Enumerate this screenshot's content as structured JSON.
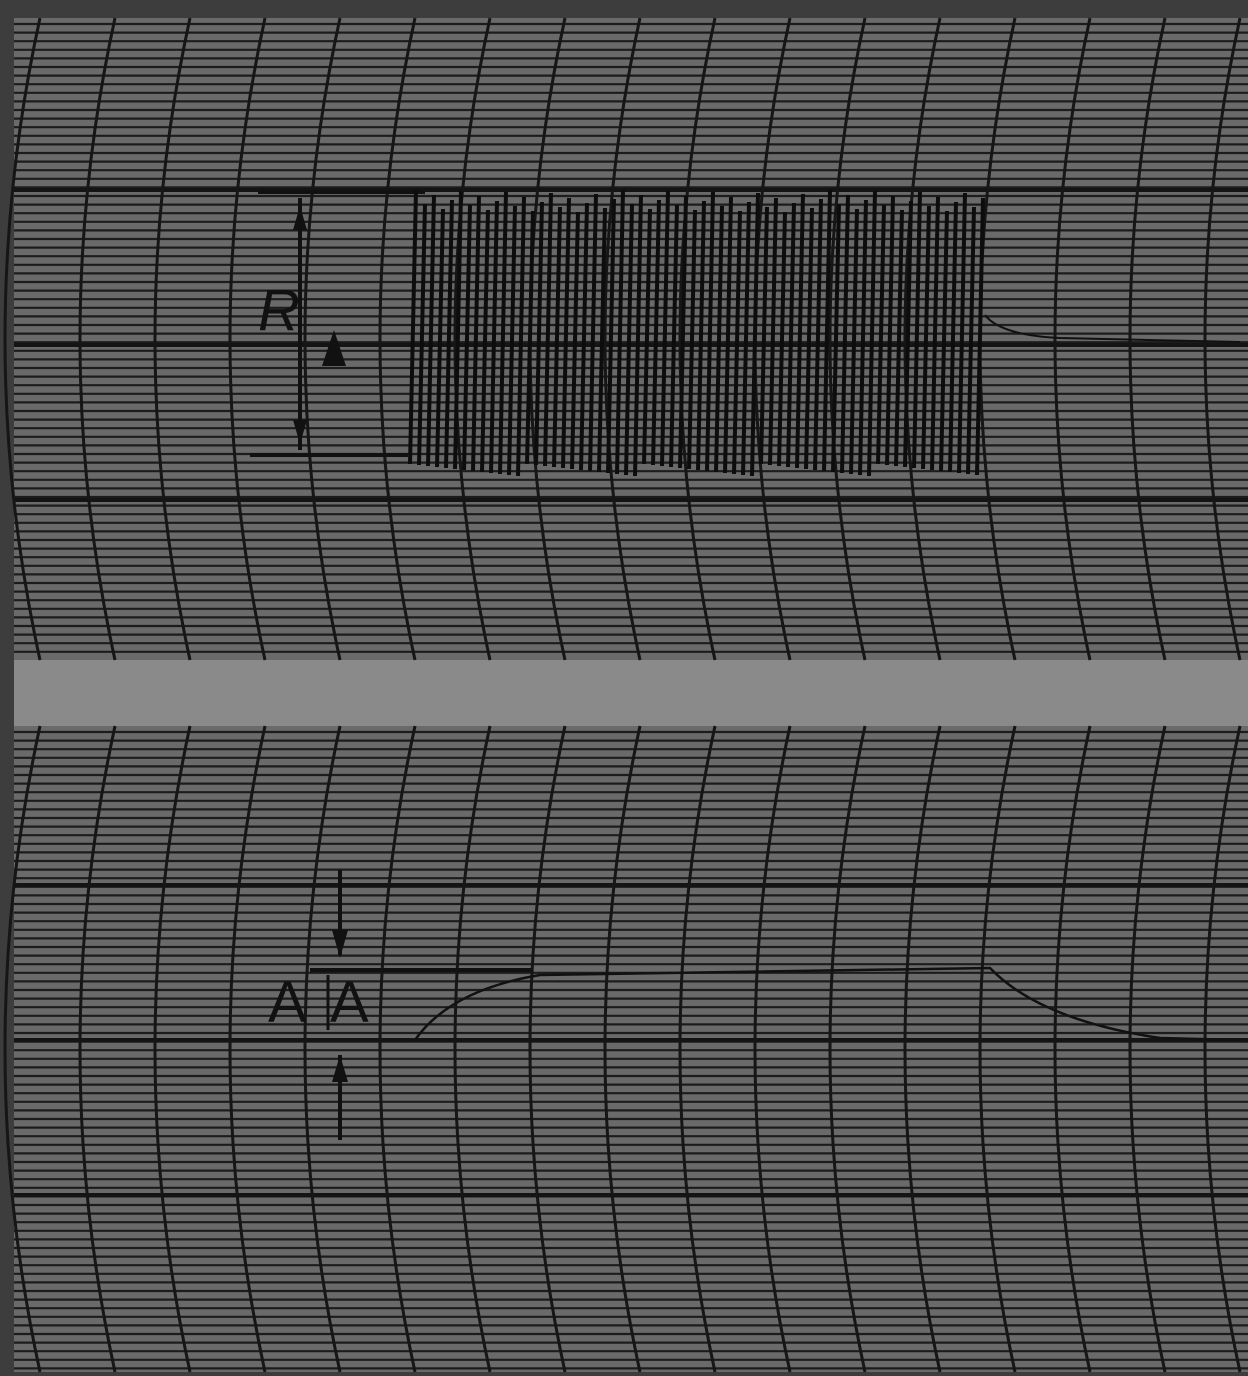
{
  "top_panel": {
    "label": "R"
  },
  "bottom_panel": {
    "labels": [
      "A",
      "A"
    ]
  }
}
